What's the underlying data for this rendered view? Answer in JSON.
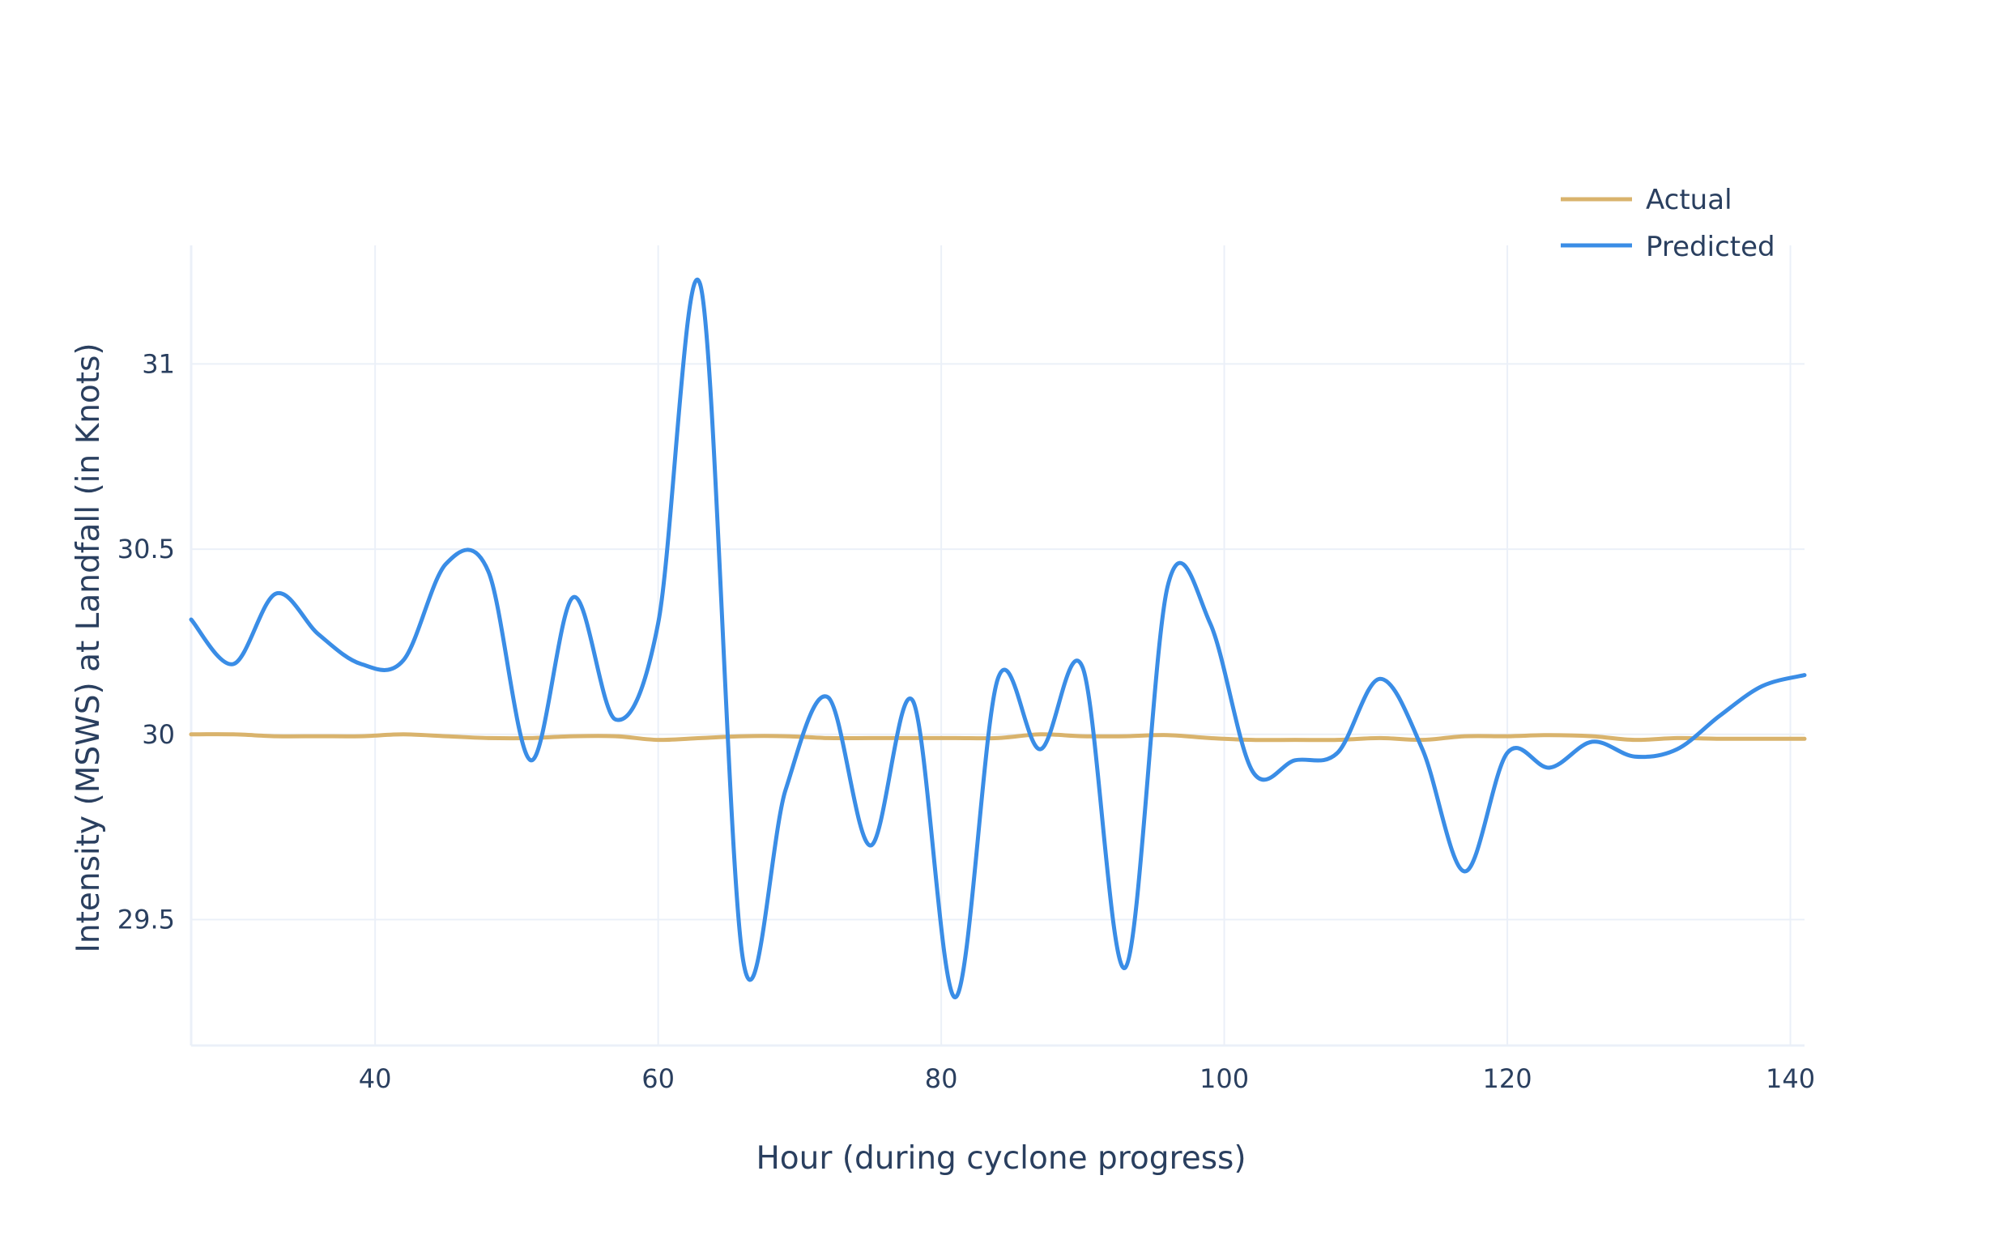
{
  "chart_data": {
    "type": "line",
    "title": "",
    "xlabel": "Hour (during cyclone progress)",
    "ylabel": "Intensity (MSWS) at Landfall (in Knots)",
    "xlim": [
      27,
      141
    ],
    "ylim": [
      29.16,
      31.32
    ],
    "x_ticks": [
      40,
      60,
      80,
      100,
      120,
      140
    ],
    "y_ticks": [
      29.5,
      30,
      30.5,
      31
    ],
    "y_tick_labels": [
      "29.5",
      "30",
      "30.5",
      "31"
    ],
    "grid": true,
    "legend_position": "top-right",
    "series": [
      {
        "name": "Actual",
        "color": "#d9b36c",
        "x": [
          27,
          30,
          33,
          36,
          39,
          42,
          45,
          48,
          51,
          54,
          57,
          60,
          63,
          66,
          69,
          72,
          75,
          78,
          81,
          84,
          87,
          90,
          93,
          96,
          99,
          102,
          105,
          108,
          111,
          114,
          117,
          120,
          123,
          126,
          129,
          132,
          135,
          138,
          141
        ],
        "values": [
          30.0,
          30.0,
          29.995,
          29.995,
          29.995,
          30.0,
          29.995,
          29.99,
          29.99,
          29.995,
          29.995,
          29.985,
          29.99,
          29.995,
          29.995,
          29.99,
          29.99,
          29.99,
          29.99,
          29.99,
          30.0,
          29.995,
          29.995,
          29.998,
          29.99,
          29.985,
          29.985,
          29.985,
          29.99,
          29.985,
          29.995,
          29.995,
          29.998,
          29.995,
          29.985,
          29.99,
          29.988,
          29.988,
          29.988
        ]
      },
      {
        "name": "Predicted",
        "color": "#3a8de6",
        "x": [
          27,
          30,
          33,
          36,
          39,
          42,
          45,
          48,
          51,
          54,
          57,
          60,
          63,
          66,
          69,
          72,
          75,
          78,
          81,
          84,
          87,
          90,
          93,
          96,
          99,
          102,
          105,
          108,
          111,
          114,
          117,
          120,
          123,
          126,
          129,
          132,
          135,
          138,
          141
        ],
        "values": [
          30.31,
          30.19,
          30.38,
          30.27,
          30.19,
          30.2,
          30.46,
          30.44,
          29.93,
          30.37,
          30.04,
          30.3,
          31.21,
          29.39,
          29.85,
          30.1,
          29.7,
          30.09,
          29.29,
          30.15,
          29.96,
          30.18,
          29.37,
          30.4,
          30.3,
          29.9,
          29.93,
          29.95,
          30.15,
          29.96,
          29.63,
          29.95,
          29.91,
          29.98,
          29.94,
          29.96,
          30.05,
          30.13,
          30.16
        ]
      }
    ]
  }
}
